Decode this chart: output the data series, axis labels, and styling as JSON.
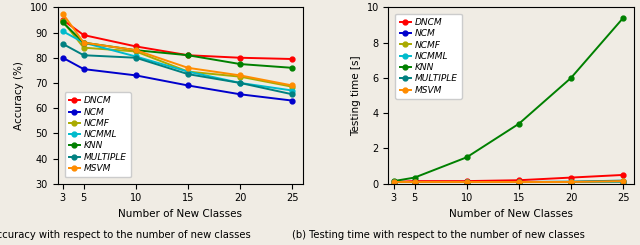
{
  "x": [
    3,
    5,
    10,
    15,
    20,
    25
  ],
  "acc": {
    "DNCM": [
      95.0,
      89.0,
      84.5,
      81.0,
      80.0,
      79.5
    ],
    "NCM": [
      80.0,
      75.5,
      73.0,
      69.0,
      65.5,
      63.0
    ],
    "NCMF": [
      94.5,
      84.0,
      82.5,
      74.5,
      72.5,
      68.5
    ],
    "NCMML": [
      90.5,
      86.0,
      80.5,
      74.5,
      70.0,
      67.0
    ],
    "KNN": [
      94.0,
      86.0,
      83.0,
      81.0,
      77.5,
      76.0
    ],
    "MULTIPLE": [
      85.5,
      81.0,
      80.0,
      73.5,
      70.0,
      65.5
    ],
    "MSVM": [
      97.5,
      86.0,
      83.0,
      76.0,
      73.0,
      69.0
    ]
  },
  "time": {
    "DNCM": [
      0.1,
      0.15,
      0.15,
      0.2,
      0.35,
      0.5
    ],
    "NCM": [
      0.1,
      0.1,
      0.1,
      0.1,
      0.1,
      0.12
    ],
    "NCMF": [
      0.1,
      0.1,
      0.1,
      0.1,
      0.1,
      0.12
    ],
    "NCMML": [
      0.1,
      0.1,
      0.1,
      0.1,
      0.1,
      0.12
    ],
    "KNN": [
      0.15,
      0.35,
      1.5,
      3.4,
      6.0,
      9.4
    ],
    "MULTIPLE": [
      0.1,
      0.1,
      0.1,
      0.1,
      0.12,
      0.18
    ],
    "MSVM": [
      0.1,
      0.1,
      0.1,
      0.1,
      0.1,
      0.15
    ]
  },
  "colors": {
    "DNCM": "#FF0000",
    "NCM": "#0000CC",
    "NCMF": "#AAAA00",
    "NCMML": "#00BBCC",
    "KNN": "#008000",
    "MULTIPLE": "#008080",
    "MSVM": "#FF8C00"
  },
  "acc_ylim": [
    30,
    100
  ],
  "acc_yticks": [
    30,
    40,
    50,
    60,
    70,
    80,
    90,
    100
  ],
  "time_ylim": [
    0,
    10
  ],
  "time_yticks": [
    0,
    2,
    4,
    6,
    8,
    10
  ],
  "xlabel": "Number of New Classes",
  "acc_ylabel": "Accuracy (%)",
  "time_ylabel": "Testing time [s]",
  "caption_a": "(a) Accuracy with respect to the number of new classes",
  "caption_b": "(b) Testing time with respect to the number of new classes",
  "legend_order": [
    "DNCM",
    "NCM",
    "NCMF",
    "NCMML",
    "KNN",
    "MULTIPLE",
    "MSVM"
  ],
  "fig_facecolor": "#f0ece4"
}
